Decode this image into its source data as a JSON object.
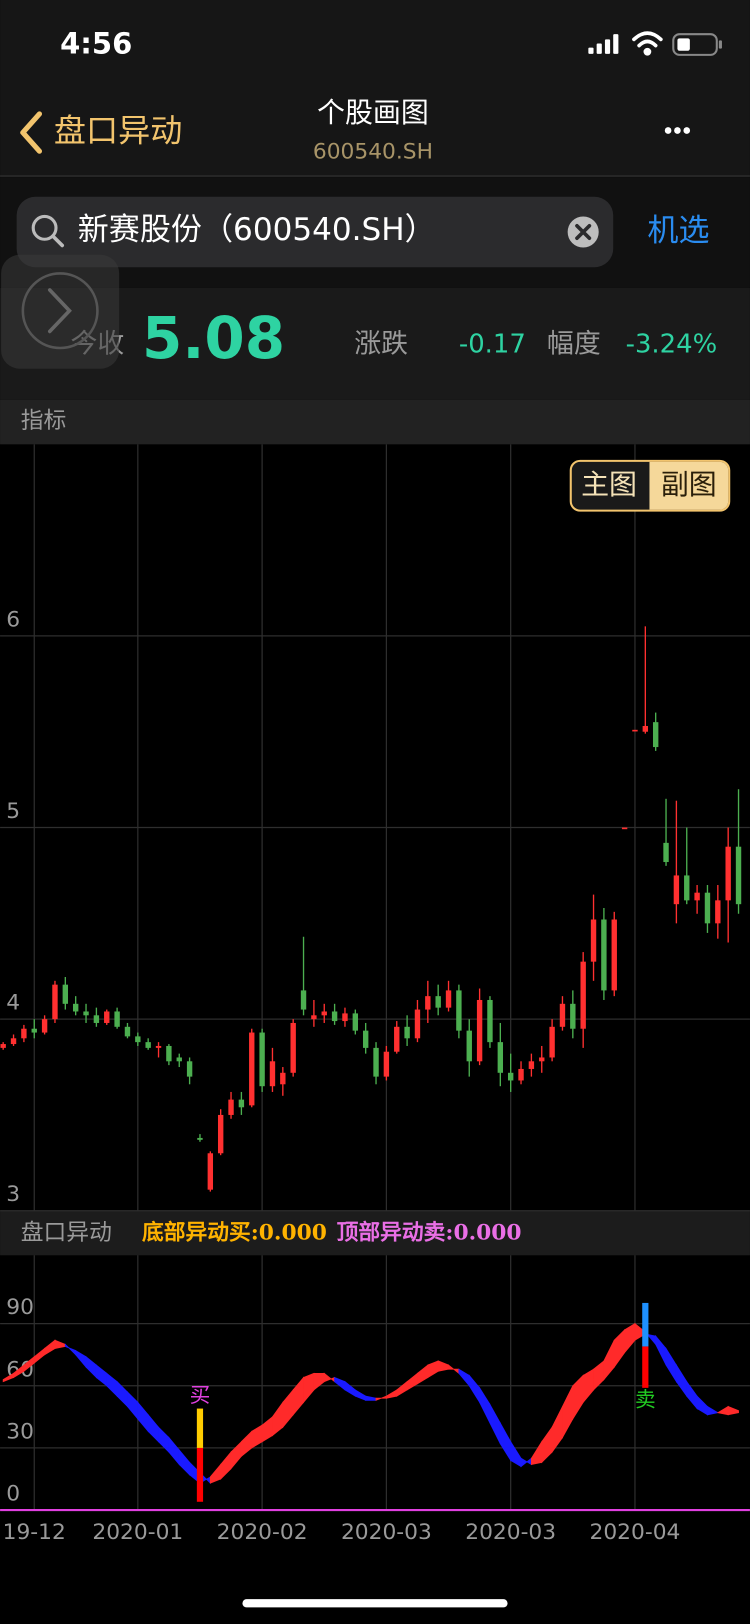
{
  "status_bar": {
    "time": "4:56"
  },
  "nav": {
    "back": "盘口异动",
    "title": "个股画图",
    "subtitle": "600540.SH"
  },
  "search": {
    "query": "新赛股份（600540.SH）",
    "action": "机选"
  },
  "quote": {
    "close_label": "今收",
    "close": "5.08",
    "change_label": "涨跌",
    "change": "-0.17",
    "pct_label": "幅度",
    "pct": "-3.24%"
  },
  "section": "指标",
  "chart_tabs": [
    "主图",
    "副图"
  ],
  "chart_data": [
    {
      "type": "candlestick",
      "up_color": "#ff3030",
      "down_color": "#4caf50",
      "grid": true,
      "ylim": [
        3,
        7
      ],
      "yticks": [
        3,
        4,
        5,
        6
      ],
      "open": [
        3.85,
        3.87,
        3.9,
        3.95,
        3.93,
        4.0,
        4.18,
        4.08,
        4.04,
        4.02,
        3.98,
        4.04,
        3.96,
        3.91,
        3.88,
        3.85,
        3.86,
        3.8,
        3.78,
        3.38,
        3.11,
        3.3,
        3.5,
        3.58,
        3.55,
        3.93,
        3.65,
        3.66,
        3.72,
        4.15,
        4.0,
        4.02,
        4.04,
        3.99,
        4.03,
        3.94,
        3.85,
        3.7,
        3.83,
        3.96,
        3.9,
        4.05,
        4.12,
        4.06,
        4.15,
        3.94,
        3.78,
        4.1,
        3.88,
        3.72,
        3.68,
        3.74,
        3.78,
        3.8,
        3.96,
        4.08,
        3.95,
        4.3,
        4.52,
        4.15,
        5.0,
        5.51,
        5.5,
        5.55,
        4.92,
        4.6,
        4.75,
        4.62,
        4.66,
        4.5,
        4.62,
        4.9
      ],
      "high": [
        3.88,
        3.92,
        3.97,
        4.0,
        4.02,
        4.2,
        4.22,
        4.12,
        4.08,
        4.06,
        4.05,
        4.06,
        3.98,
        3.93,
        3.9,
        3.88,
        3.87,
        3.82,
        3.8,
        3.4,
        3.31,
        3.53,
        3.62,
        3.62,
        3.95,
        3.95,
        3.85,
        3.75,
        4.0,
        4.43,
        4.1,
        4.08,
        4.08,
        4.06,
        4.05,
        3.98,
        3.88,
        3.86,
        3.99,
        4.02,
        4.1,
        4.2,
        4.18,
        4.2,
        4.18,
        4.0,
        4.16,
        4.12,
        3.98,
        3.82,
        3.78,
        3.82,
        3.86,
        4.0,
        4.12,
        4.15,
        4.35,
        4.65,
        4.58,
        4.56,
        5.0,
        5.51,
        6.05,
        5.6,
        5.15,
        5.14,
        5.0,
        4.7,
        4.7,
        4.7,
        5.0,
        5.2
      ],
      "low": [
        3.84,
        3.86,
        3.88,
        3.9,
        3.92,
        3.98,
        4.05,
        4.02,
        3.98,
        3.96,
        3.97,
        3.95,
        3.9,
        3.86,
        3.84,
        3.8,
        3.76,
        3.75,
        3.66,
        3.36,
        3.1,
        3.29,
        3.48,
        3.5,
        3.54,
        3.62,
        3.62,
        3.6,
        3.7,
        4.02,
        3.96,
        3.98,
        3.97,
        3.96,
        3.92,
        3.82,
        3.66,
        3.68,
        3.82,
        3.86,
        3.88,
        3.98,
        4.02,
        4.04,
        3.9,
        3.7,
        3.76,
        3.85,
        3.65,
        3.62,
        3.66,
        3.7,
        3.72,
        3.78,
        3.94,
        3.9,
        3.85,
        4.2,
        4.1,
        4.12,
        5.0,
        5.51,
        5.49,
        5.4,
        4.8,
        4.5,
        4.6,
        4.55,
        4.45,
        4.42,
        4.4,
        4.55
      ],
      "close": [
        3.87,
        3.9,
        3.95,
        3.93,
        4.0,
        4.18,
        4.08,
        4.04,
        4.02,
        3.98,
        4.04,
        3.96,
        3.91,
        3.88,
        3.85,
        3.86,
        3.78,
        3.78,
        3.7,
        3.37,
        3.3,
        3.5,
        3.58,
        3.54,
        3.93,
        3.65,
        3.78,
        3.72,
        3.98,
        4.05,
        4.02,
        4.04,
        3.99,
        4.03,
        3.94,
        3.85,
        3.7,
        3.83,
        3.96,
        3.9,
        4.05,
        4.12,
        4.06,
        4.15,
        3.94,
        3.78,
        4.1,
        3.88,
        3.72,
        3.68,
        3.74,
        3.78,
        3.8,
        3.96,
        4.08,
        3.95,
        4.3,
        4.52,
        4.15,
        4.52,
        5.0,
        5.51,
        5.53,
        5.42,
        4.82,
        4.75,
        4.62,
        4.66,
        4.5,
        4.62,
        4.9,
        4.6
      ]
    },
    {
      "type": "band",
      "title": "盘口异动",
      "legend": [
        "底部异动买:0.000",
        "顶部异动卖:0.000"
      ],
      "legend_colors": [
        "#ffb300",
        "#ea6fe6"
      ],
      "up_color": "#ff2a2a",
      "down_color": "#1a1aff",
      "grid": true,
      "ylim": [
        0,
        123
      ],
      "yticks": [
        0,
        30,
        60,
        90
      ],
      "categories": [
        null,
        null,
        null,
        "19-12",
        null,
        null,
        null,
        null,
        null,
        null,
        null,
        null,
        null,
        "2020-01",
        null,
        null,
        null,
        null,
        null,
        null,
        null,
        null,
        null,
        null,
        null,
        "2020-02",
        null,
        null,
        null,
        null,
        null,
        null,
        null,
        null,
        null,
        null,
        null,
        "2020-03",
        null,
        null,
        null,
        null,
        null,
        null,
        null,
        null,
        null,
        null,
        null,
        "2020-03",
        null,
        null,
        null,
        null,
        null,
        null,
        null,
        null,
        null,
        null,
        null,
        "2020-04",
        null,
        null,
        null,
        null,
        null,
        null,
        null,
        null,
        null,
        null
      ],
      "series": [
        {
          "values": [
            63,
            66,
            70,
            74,
            78,
            82,
            80,
            75,
            69,
            64,
            60,
            55,
            50,
            44,
            38,
            33,
            28,
            22,
            17,
            13,
            16,
            22,
            28,
            33,
            38,
            41,
            45,
            52,
            58,
            64,
            66,
            66,
            62,
            58,
            55,
            53,
            53,
            55,
            58,
            62,
            66,
            70,
            72,
            70,
            66,
            60,
            52,
            42,
            32,
            24,
            21,
            25,
            33,
            40,
            50,
            60,
            65,
            68,
            72,
            82,
            87,
            90,
            86,
            80,
            70,
            62,
            55,
            49,
            46,
            47,
            50,
            48
          ]
        },
        {
          "values": [
            62,
            64,
            67,
            71,
            75,
            78,
            79,
            77,
            74,
            70,
            66,
            62,
            57,
            52,
            46,
            40,
            35,
            29,
            23,
            18,
            13,
            15,
            20,
            26,
            30,
            33,
            36,
            40,
            46,
            52,
            58,
            62,
            64,
            62,
            58,
            55,
            54,
            54,
            55,
            58,
            61,
            64,
            67,
            68,
            68,
            65,
            59,
            51,
            42,
            33,
            25,
            22,
            23,
            28,
            35,
            44,
            52,
            58,
            63,
            69,
            76,
            82,
            85,
            84,
            78,
            70,
            62,
            55,
            50,
            47,
            46,
            47
          ]
        }
      ],
      "signals": [
        {
          "label": "买",
          "x": 19,
          "values": [
            4,
            30,
            49
          ],
          "colors": [
            "#ff0000",
            "#ffcc00"
          ],
          "label_color": "#e040e0"
        },
        {
          "label": "卖",
          "x": 62,
          "values": [
            59,
            79,
            100
          ],
          "colors": [
            "#ff0000",
            "#1e90ff"
          ],
          "label_color": "#22cc22"
        }
      ]
    }
  ]
}
